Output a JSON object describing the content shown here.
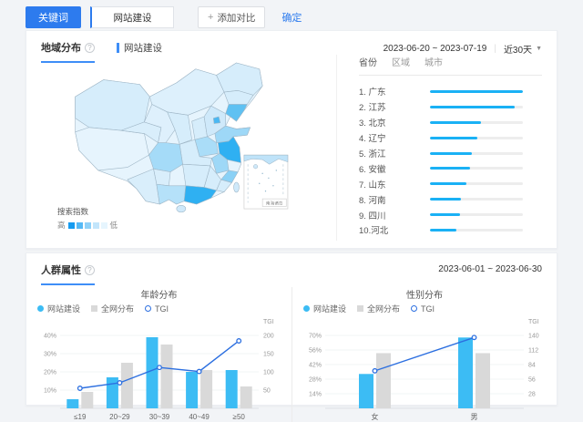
{
  "topbar": {
    "keyword_label": "关键词",
    "keyword_value": "网站建设",
    "add_icon": "+",
    "add_compare_label": "添加对比",
    "confirm_label": "确定"
  },
  "region_section": {
    "title": "地域分布",
    "info_icon": "?",
    "keyword_tag": "网站建设",
    "date_range": "2023-06-20 ~ 2023-07-19",
    "period_label": "近30天",
    "legend_title": "搜索指数",
    "legend_high": "高",
    "legend_low": "低",
    "legend_colors": [
      "#169bf0",
      "#55b9f5",
      "#8fd1f8",
      "#c2e5fb",
      "#e6f5fe"
    ],
    "inset_label": "南海诸岛",
    "rank_tabs": [
      "省份",
      "区域",
      "城市"
    ],
    "ranking": [
      {
        "label": "1. 广东",
        "value": 100
      },
      {
        "label": "2. 江苏",
        "value": 91
      },
      {
        "label": "3. 北京",
        "value": 55
      },
      {
        "label": "4. 辽宁",
        "value": 51
      },
      {
        "label": "5. 浙江",
        "value": 45
      },
      {
        "label": "6. 安徽",
        "value": 43
      },
      {
        "label": "7. 山东",
        "value": 39
      },
      {
        "label": "8. 河南",
        "value": 33
      },
      {
        "label": "9. 四川",
        "value": 32
      },
      {
        "label": "10.河北",
        "value": 28
      }
    ]
  },
  "demo_section": {
    "title": "人群属性",
    "info_icon": "?",
    "date_range": "2023-06-01 ~ 2023-06-30",
    "legend": [
      {
        "label": "网站建设",
        "type": "dot"
      },
      {
        "label": "全网分布",
        "type": "square"
      },
      {
        "label": "TGI",
        "type": "ring"
      }
    ]
  },
  "chart_data": [
    {
      "type": "bar+line",
      "title": "年龄分布",
      "categories": [
        "≤19",
        "20~29",
        "30~39",
        "40~49",
        "≥50"
      ],
      "series": [
        {
          "name": "网站建设",
          "type": "bar",
          "values": [
            5,
            17,
            39,
            20,
            21
          ],
          "unit": "%"
        },
        {
          "name": "全网分布",
          "type": "bar",
          "values": [
            9,
            25,
            35,
            21,
            12
          ],
          "unit": "%"
        },
        {
          "name": "TGI",
          "type": "line",
          "values": [
            55,
            70,
            112,
            101,
            185
          ]
        }
      ],
      "left_ticks": [
        10,
        20,
        30,
        40
      ],
      "left_tick_suffix": "%",
      "left_max": 44,
      "right_ticks": [
        50,
        100,
        150,
        200
      ],
      "right_max": 220,
      "right_axis_label": "TGI",
      "legend_position": "top-left",
      "grid": true
    },
    {
      "type": "bar+line",
      "title": "性别分布",
      "categories": [
        "女",
        "男"
      ],
      "series": [
        {
          "name": "网站建设",
          "type": "bar",
          "values": [
            33,
            68
          ],
          "unit": "%"
        },
        {
          "name": "全网分布",
          "type": "bar",
          "values": [
            53,
            53
          ],
          "unit": "%"
        },
        {
          "name": "TGI",
          "type": "line",
          "values": [
            72,
            136
          ]
        }
      ],
      "left_ticks": [
        14,
        28,
        42,
        56,
        70
      ],
      "left_tick_suffix": "%",
      "left_max": 77,
      "right_ticks": [
        28,
        56,
        84,
        112,
        140
      ],
      "right_max": 154,
      "right_axis_label": "TGI",
      "legend_position": "top-left",
      "grid": true
    }
  ],
  "colors": {
    "accent_blue": "#2d7bee",
    "tab_underline": "#3e8ef7",
    "bar_blue": "#3cbcf4",
    "bar_gray": "#d9d9d9",
    "line_blue": "#2c6fe0",
    "rank_bar": "#1ab1f5",
    "rank_track": "#ededed"
  }
}
